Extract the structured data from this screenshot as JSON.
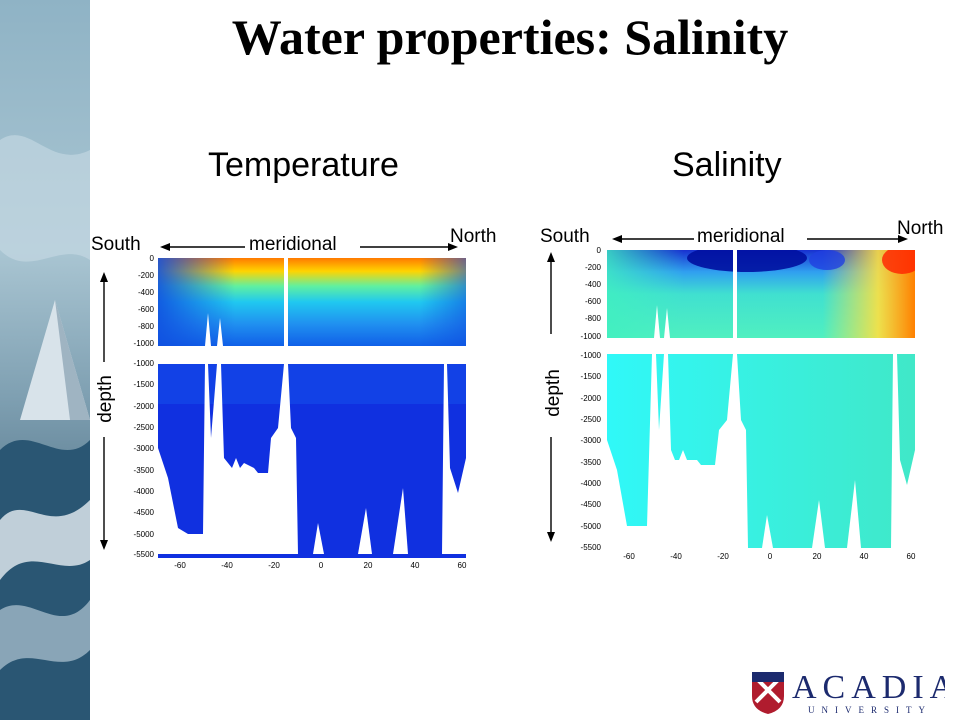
{
  "title": "Water properties: Salinity",
  "panels": {
    "temperature": {
      "heading": "Temperature",
      "south": "South",
      "north": "North",
      "meridional": "meridional",
      "depth": "depth"
    },
    "salinity": {
      "heading": "Salinity",
      "south": "South",
      "north": "North",
      "meridional": "meridional",
      "depth": "depth"
    }
  },
  "axis": {
    "upper_ticks": [
      "0",
      "-200",
      "-400",
      "-600",
      "-800",
      "-1000"
    ],
    "lower_ticks": [
      "-1000",
      "-1500",
      "-2000",
      "-2500",
      "-3000",
      "-3500",
      "-4000",
      "-4500",
      "-5000",
      "-5500"
    ],
    "x_ticks": [
      "-60",
      "-40",
      "-20",
      "0",
      "20",
      "40",
      "60"
    ]
  },
  "logo": {
    "wordmark": "ACADIA",
    "subtitle": "UNIVERSITY"
  },
  "colors": {
    "temp_deep": "#1030e0",
    "sal_deep": "#30f0f0"
  }
}
